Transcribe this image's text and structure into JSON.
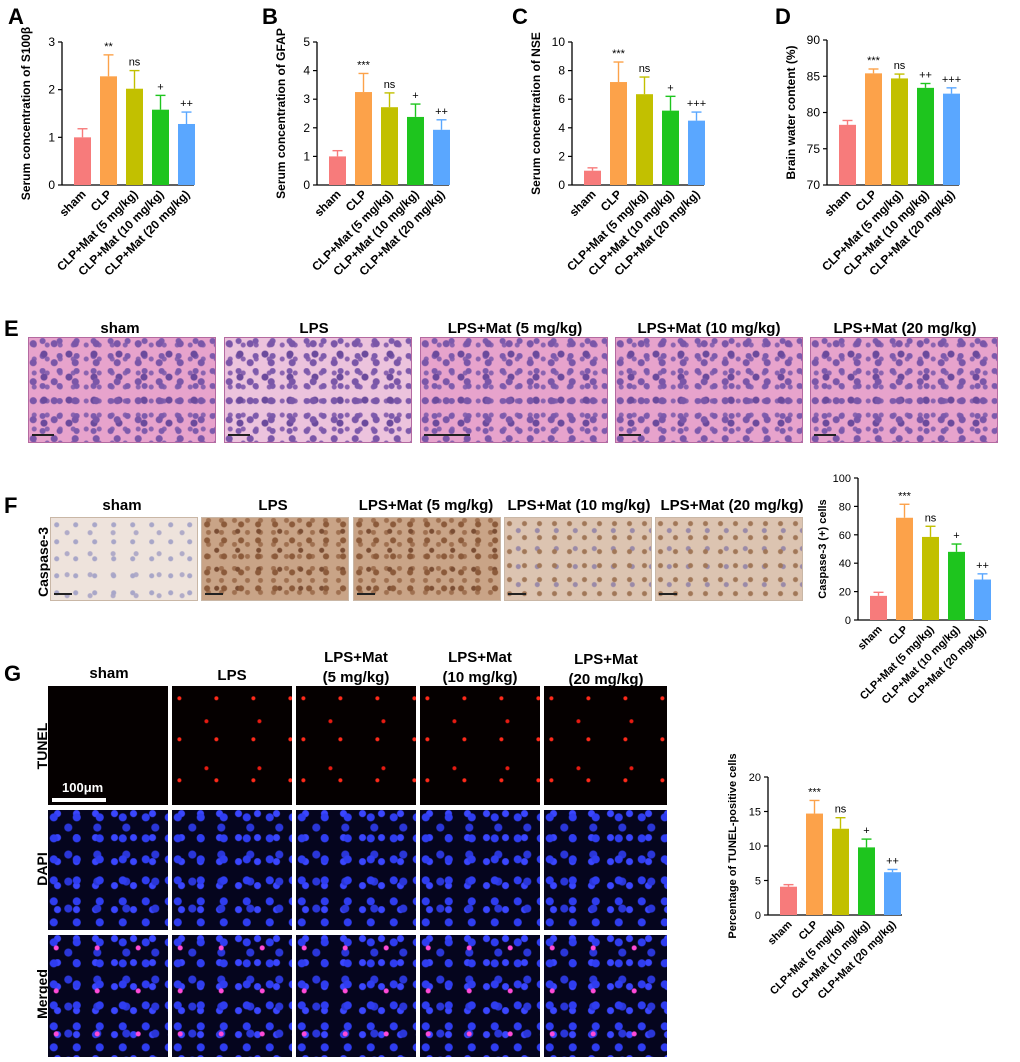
{
  "colors": {
    "sham": "#f77b7b",
    "clp": "#fca24a",
    "mat5": "#c2c000",
    "mat10": "#1ec51e",
    "mat20": "#5aa7ff"
  },
  "panel_labels": [
    "A",
    "B",
    "C",
    "D",
    "E",
    "F",
    "G"
  ],
  "chart_data": [
    {
      "id": "A",
      "type": "bar",
      "categories": [
        "sham",
        "CLP",
        "CLP+Mat (5 mg/kg)",
        "CLP+Mat (10 mg/kg)",
        "CLP+Mat (20 mg/kg)"
      ],
      "values": [
        1.0,
        2.28,
        2.02,
        1.58,
        1.28
      ],
      "errors": [
        0.18,
        0.45,
        0.38,
        0.3,
        0.25
      ],
      "annotations": [
        "",
        "**",
        "ns",
        "+",
        "++"
      ],
      "ylabel": "Serum concentration of S100β",
      "ylim": [
        0,
        3
      ],
      "yticks": [
        0,
        1,
        2,
        3
      ]
    },
    {
      "id": "B",
      "type": "bar",
      "categories": [
        "sham",
        "CLP",
        "CLP+Mat (5 mg/kg)",
        "CLP+Mat (10 mg/kg)",
        "CLP+Mat (20 mg/kg)"
      ],
      "values": [
        1.0,
        3.25,
        2.72,
        2.38,
        1.93
      ],
      "errors": [
        0.2,
        0.65,
        0.5,
        0.45,
        0.35
      ],
      "annotations": [
        "",
        "***",
        "ns",
        "+",
        "++"
      ],
      "ylabel": "Serum concentration of GFAP",
      "ylim": [
        0,
        5
      ],
      "yticks": [
        0,
        1,
        2,
        3,
        4,
        5
      ]
    },
    {
      "id": "C",
      "type": "bar",
      "categories": [
        "sham",
        "CLP",
        "CLP+Mat (5 mg/kg)",
        "CLP+Mat (10 mg/kg)",
        "CLP+Mat (20 mg/kg)"
      ],
      "values": [
        1.0,
        7.2,
        6.35,
        5.2,
        4.5
      ],
      "errors": [
        0.2,
        1.4,
        1.2,
        1.0,
        0.6
      ],
      "annotations": [
        "",
        "***",
        "ns",
        "+",
        "+++"
      ],
      "ylabel": "Serum concentration of NSE",
      "ylim": [
        0,
        10
      ],
      "yticks": [
        0,
        2,
        4,
        6,
        8,
        10
      ]
    },
    {
      "id": "D",
      "type": "bar",
      "categories": [
        "sham",
        "CLP",
        "CLP+Mat (5 mg/kg)",
        "CLP+Mat (10 mg/kg)",
        "CLP+Mat (20 mg/kg)"
      ],
      "values": [
        78.3,
        85.4,
        84.7,
        83.4,
        82.6
      ],
      "errors": [
        0.6,
        0.6,
        0.6,
        0.6,
        0.8
      ],
      "annotations": [
        "",
        "***",
        "ns",
        "++",
        "+++"
      ],
      "ylabel": "Brain water content (%)",
      "ylim": [
        70,
        90
      ],
      "yticks": [
        70,
        75,
        80,
        85,
        90
      ]
    },
    {
      "id": "F",
      "type": "bar",
      "categories": [
        "sham",
        "CLP",
        "CLP+Mat (5 mg/kg)",
        "CLP+Mat (10 mg/kg)",
        "CLP+Mat (20 mg/kg)"
      ],
      "values": [
        17.0,
        72.0,
        58.5,
        48.0,
        28.5
      ],
      "errors": [
        2.5,
        9.5,
        7.5,
        5.5,
        4.0
      ],
      "annotations": [
        "",
        "***",
        "ns",
        "+",
        "++"
      ],
      "ylabel": "Caspase-3 (+) cells",
      "ylim": [
        0,
        100
      ],
      "yticks": [
        0,
        20,
        40,
        60,
        80,
        100
      ]
    },
    {
      "id": "G",
      "type": "bar",
      "categories": [
        "sham",
        "CLP",
        "CLP+Mat (5 mg/kg)",
        "CLP+Mat (10 mg/kg)",
        "CLP+Mat (20 mg/kg)"
      ],
      "values": [
        4.1,
        14.7,
        12.5,
        9.8,
        6.2
      ],
      "errors": [
        0.3,
        1.9,
        1.6,
        1.2,
        0.4
      ],
      "annotations": [
        "",
        "***",
        "ns",
        "+",
        "++"
      ],
      "ylabel": "Percentage of TUNEL-positive cells",
      "ylim": [
        0,
        20
      ],
      "yticks": [
        0,
        5,
        10,
        15,
        20
      ]
    }
  ],
  "panel_e": {
    "headers": [
      "sham",
      "LPS",
      "LPS+Mat (5 mg/kg)",
      "LPS+Mat (10 mg/kg)",
      "LPS+Mat (20 mg/kg)"
    ]
  },
  "panel_f": {
    "headers": [
      "sham",
      "LPS",
      "LPS+Mat (5 mg/kg)",
      "LPS+Mat (10 mg/kg)",
      "LPS+Mat (20 mg/kg)"
    ],
    "row_label": "Caspase-3"
  },
  "panel_g": {
    "headers": [
      {
        "line1": "sham",
        "line2": ""
      },
      {
        "line1": "LPS",
        "line2": ""
      },
      {
        "line1": "LPS+Mat",
        "line2": "(5 mg/kg)"
      },
      {
        "line1": "LPS+Mat",
        "line2": "(10 mg/kg)"
      },
      {
        "line1": "LPS+Mat",
        "line2": "(20 mg/kg)"
      }
    ],
    "rows": [
      "TUNEL",
      "DAPI",
      "Merged"
    ],
    "scale_bar": "100μm"
  }
}
